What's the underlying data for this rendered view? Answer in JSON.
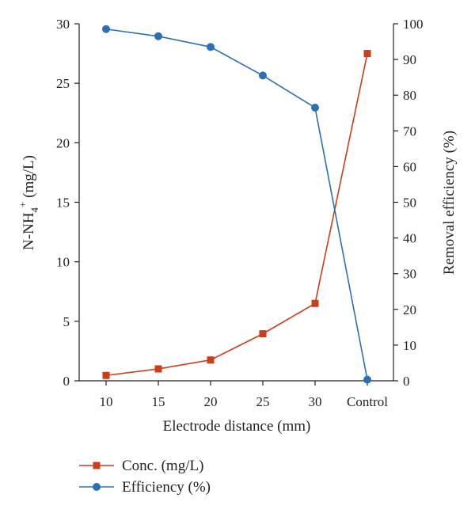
{
  "chart_data": {
    "type": "line",
    "categories": [
      "10",
      "15",
      "20",
      "25",
      "30",
      "Control"
    ],
    "xlabel": "Electrode distance (mm)",
    "ylabel": {
      "base": "N-NH",
      "subscript": "4",
      "superscript": "+",
      "unit": " (mg/L)"
    },
    "y2label": "Removal efficiency (%)",
    "ylim": [
      0,
      30
    ],
    "yticks": [
      0,
      5,
      10,
      15,
      20,
      25,
      30
    ],
    "y2lim": [
      0,
      100
    ],
    "y2ticks": [
      0,
      10,
      20,
      30,
      40,
      50,
      60,
      70,
      80,
      90,
      100
    ],
    "grid": false,
    "legend_position": "bottom-left",
    "series": [
      {
        "name": "Conc. (mg/L)",
        "axis": "left",
        "marker": "square",
        "color": "#cc3d1a",
        "values": [
          0.45,
          1.0,
          1.75,
          3.95,
          6.5,
          27.5
        ]
      },
      {
        "name": "Efficiency (%)",
        "axis": "right",
        "marker": "circle",
        "color": "#2b6fb5",
        "values": [
          98.5,
          96.5,
          93.5,
          85.5,
          76.5,
          0.3
        ]
      }
    ]
  }
}
